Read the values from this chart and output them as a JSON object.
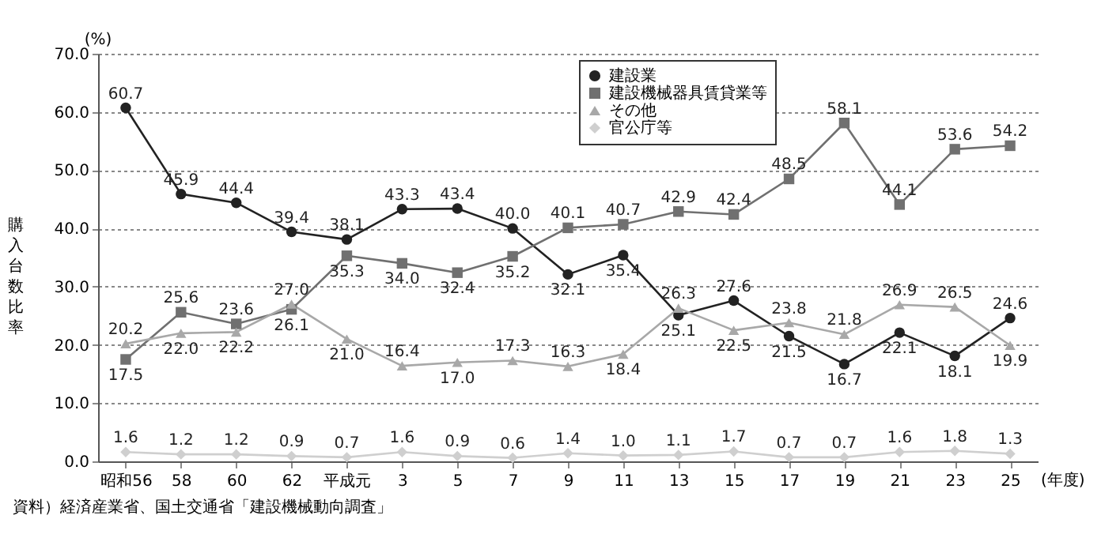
{
  "chart_data": {
    "type": "line",
    "categories": [
      "昭和56",
      "58",
      "60",
      "62",
      "平成元",
      "3",
      "5",
      "7",
      "9",
      "11",
      "13",
      "15",
      "17",
      "19",
      "21",
      "23",
      "25"
    ],
    "xlabel": "(年度)",
    "ylabel": "購入台数比率",
    "ylim": [
      0,
      70
    ],
    "yticks": [
      {
        "value": 0,
        "label": "0.0"
      },
      {
        "value": 10,
        "label": "10.0"
      },
      {
        "value": 20,
        "label": "20.0"
      },
      {
        "value": 30,
        "label": "30.0"
      },
      {
        "value": 40,
        "label": "40.0"
      },
      {
        "value": 50,
        "label": "50.0"
      },
      {
        "value": 60,
        "label": "60.0"
      },
      {
        "value": 70,
        "label": "70.0"
      }
    ],
    "series": [
      {
        "name": "建設業",
        "color": "#222222",
        "marker": "circle",
        "values": [
          60.7,
          45.9,
          44.4,
          39.4,
          38.1,
          43.3,
          43.4,
          40.0,
          32.1,
          35.4,
          25.1,
          27.6,
          21.5,
          16.7,
          22.1,
          18.1,
          24.6
        ],
        "value_labels": [
          "60.7",
          "45.9",
          "44.4",
          "39.4",
          "38.1",
          "43.3",
          "43.4",
          "40.0",
          "32.1",
          "35.4",
          "25.1",
          "27.6",
          "21.5",
          "16.7",
          "22.1",
          "18.1",
          "24.6"
        ]
      },
      {
        "name": "建設機械器具賃貸業等",
        "color": "#707070",
        "marker": "square",
        "values": [
          17.5,
          25.6,
          23.6,
          26.1,
          35.3,
          34.0,
          32.4,
          35.2,
          40.1,
          40.7,
          42.9,
          42.4,
          48.5,
          58.1,
          44.1,
          53.6,
          54.2
        ],
        "value_labels": [
          "17.5",
          "25.6",
          "23.6",
          "26.1",
          "35.3",
          "34.0",
          "32.4",
          "35.2",
          "40.1",
          "40.7",
          "42.9",
          "42.4",
          "48.5",
          "58.1",
          "44.1",
          "53.6",
          "54.2"
        ]
      },
      {
        "name": "その他",
        "color": "#a8a8a8",
        "marker": "triangle",
        "values": [
          20.2,
          22.0,
          22.2,
          27.0,
          21.0,
          16.4,
          17.0,
          17.3,
          16.3,
          18.4,
          26.3,
          22.5,
          23.8,
          21.8,
          26.9,
          26.5,
          19.9
        ],
        "value_labels": [
          "20.2",
          "22.0",
          "22.2",
          "27.0",
          "21.0",
          "16.4",
          "17.0",
          "17.3",
          "16.3",
          "18.4",
          "26.3",
          "22.5",
          "23.8",
          "21.8",
          "26.9",
          "26.5",
          "19.9"
        ]
      },
      {
        "name": "官公庁等",
        "color": "#cfcfcf",
        "marker": "diamond",
        "values": [
          1.6,
          1.2,
          1.2,
          0.9,
          0.7,
          1.6,
          0.9,
          0.6,
          1.4,
          1.0,
          1.1,
          1.7,
          0.7,
          0.7,
          1.6,
          1.8,
          1.3
        ],
        "value_labels": [
          "1.6",
          "1.2",
          "1.2",
          "0.9",
          "0.7",
          "1.6",
          "0.9",
          "0.6",
          "1.4",
          "1.0",
          "1.1",
          "1.7",
          "0.7",
          "0.7",
          "1.6",
          "1.8",
          "1.3"
        ]
      }
    ],
    "grid": "y",
    "legend": "top right",
    "annotations": [
      "(%)",
      "資料）経済産業省、国土交通省「建設機械動向調査」"
    ]
  }
}
